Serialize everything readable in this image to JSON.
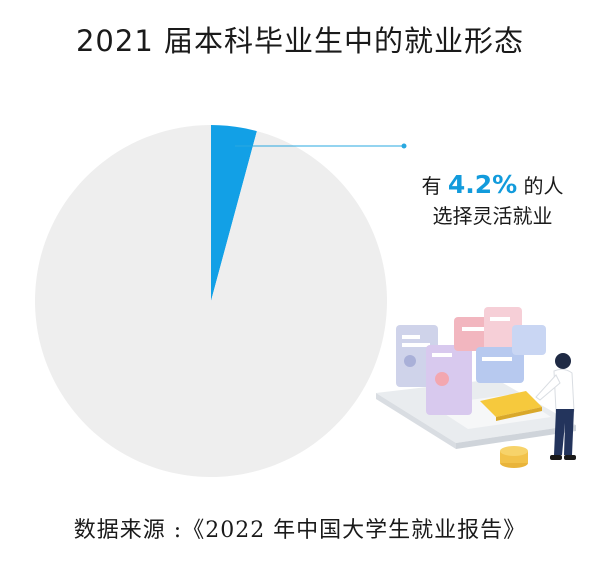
{
  "title": "2021 届本科毕业生中的就业形态",
  "chart_data": {
    "type": "pie",
    "slices": [
      {
        "label": "灵活就业",
        "value": 4.2,
        "color": "#12a0e6"
      },
      {
        "label": "",
        "value": 95.8,
        "color": "#eeeeee"
      }
    ]
  },
  "callout": {
    "prefix": "有",
    "value": "4.2%",
    "suffix": "的人",
    "line2": "选择灵活就业"
  },
  "source": "数据来源 :《2022 年中国大学生就业报告》",
  "illustration": {
    "icon": "laptop-person-illustration"
  }
}
